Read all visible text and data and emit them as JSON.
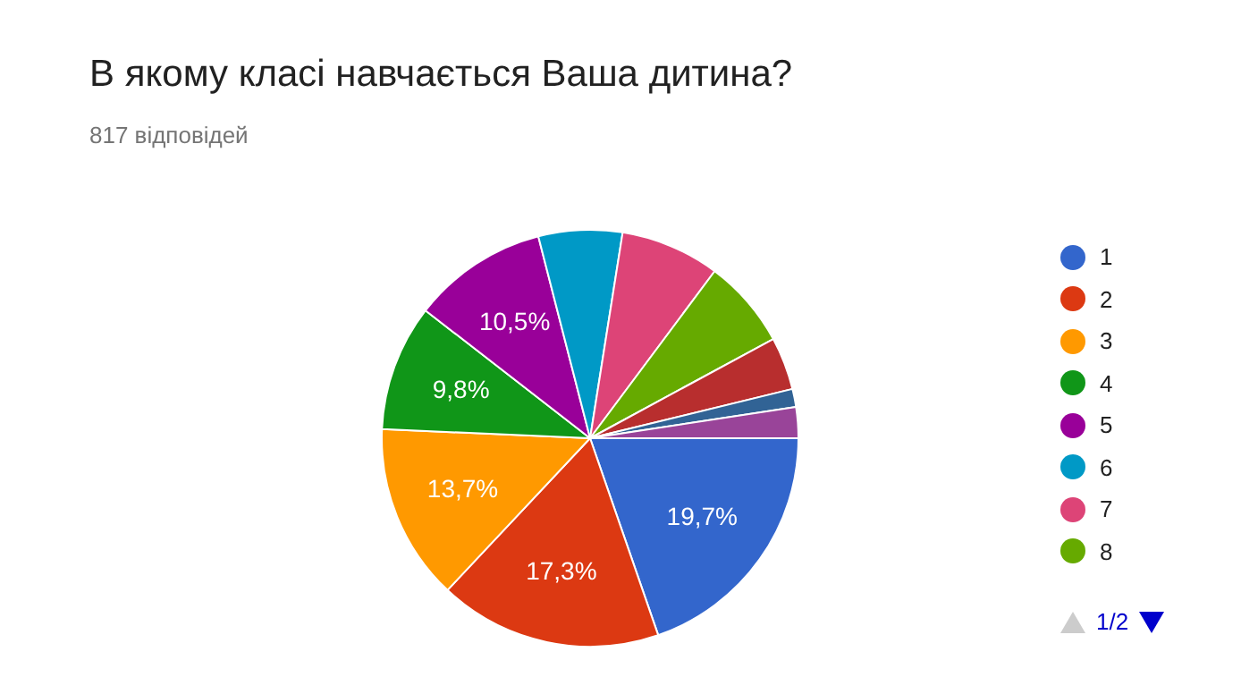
{
  "chart_data": {
    "type": "pie",
    "title": "В якому класі навчається Ваша дитина?",
    "subtitle": "817 відповідей",
    "categories": [
      "1",
      "2",
      "3",
      "4",
      "5",
      "6",
      "7",
      "8",
      null,
      null,
      null
    ],
    "values": [
      19.7,
      17.3,
      13.7,
      9.8,
      10.5,
      6.5,
      7.7,
      6.9,
      4.1,
      1.4,
      2.4
    ],
    "colors": [
      "#3366cc",
      "#dc3912",
      "#ff9900",
      "#109618",
      "#990099",
      "#0099c6",
      "#dd4477",
      "#66aa00",
      "#b82e2e",
      "#316395",
      "#994499"
    ],
    "value_labels": [
      "19,7%",
      "17,3%",
      "13,7%",
      "9,8%",
      "10,5%",
      null,
      null,
      null,
      null,
      null,
      null
    ],
    "legend": "right",
    "annotations": [
      "1/2"
    ]
  }
}
